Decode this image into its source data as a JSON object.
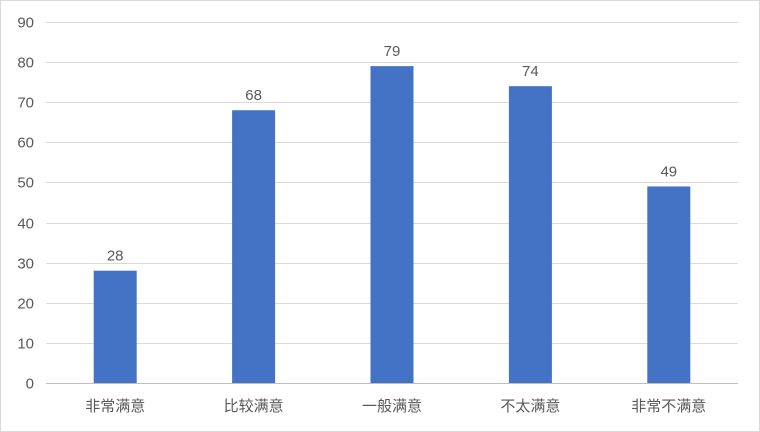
{
  "chart_data": {
    "type": "bar",
    "title": "",
    "xlabel": "",
    "ylabel": "",
    "categories": [
      "非常满意",
      "比较满意",
      "一般满意",
      "不太满意",
      "非常不满意"
    ],
    "values": [
      28,
      68,
      79,
      74,
      49
    ],
    "data_labels": [
      "28",
      "68",
      "79",
      "74",
      "49"
    ],
    "ylim": [
      0,
      90
    ],
    "yticks": [
      "0",
      "10",
      "20",
      "30",
      "40",
      "50",
      "60",
      "70",
      "80",
      "90"
    ],
    "bar_color": "#4472C4",
    "grid": true,
    "legend": "none"
  }
}
